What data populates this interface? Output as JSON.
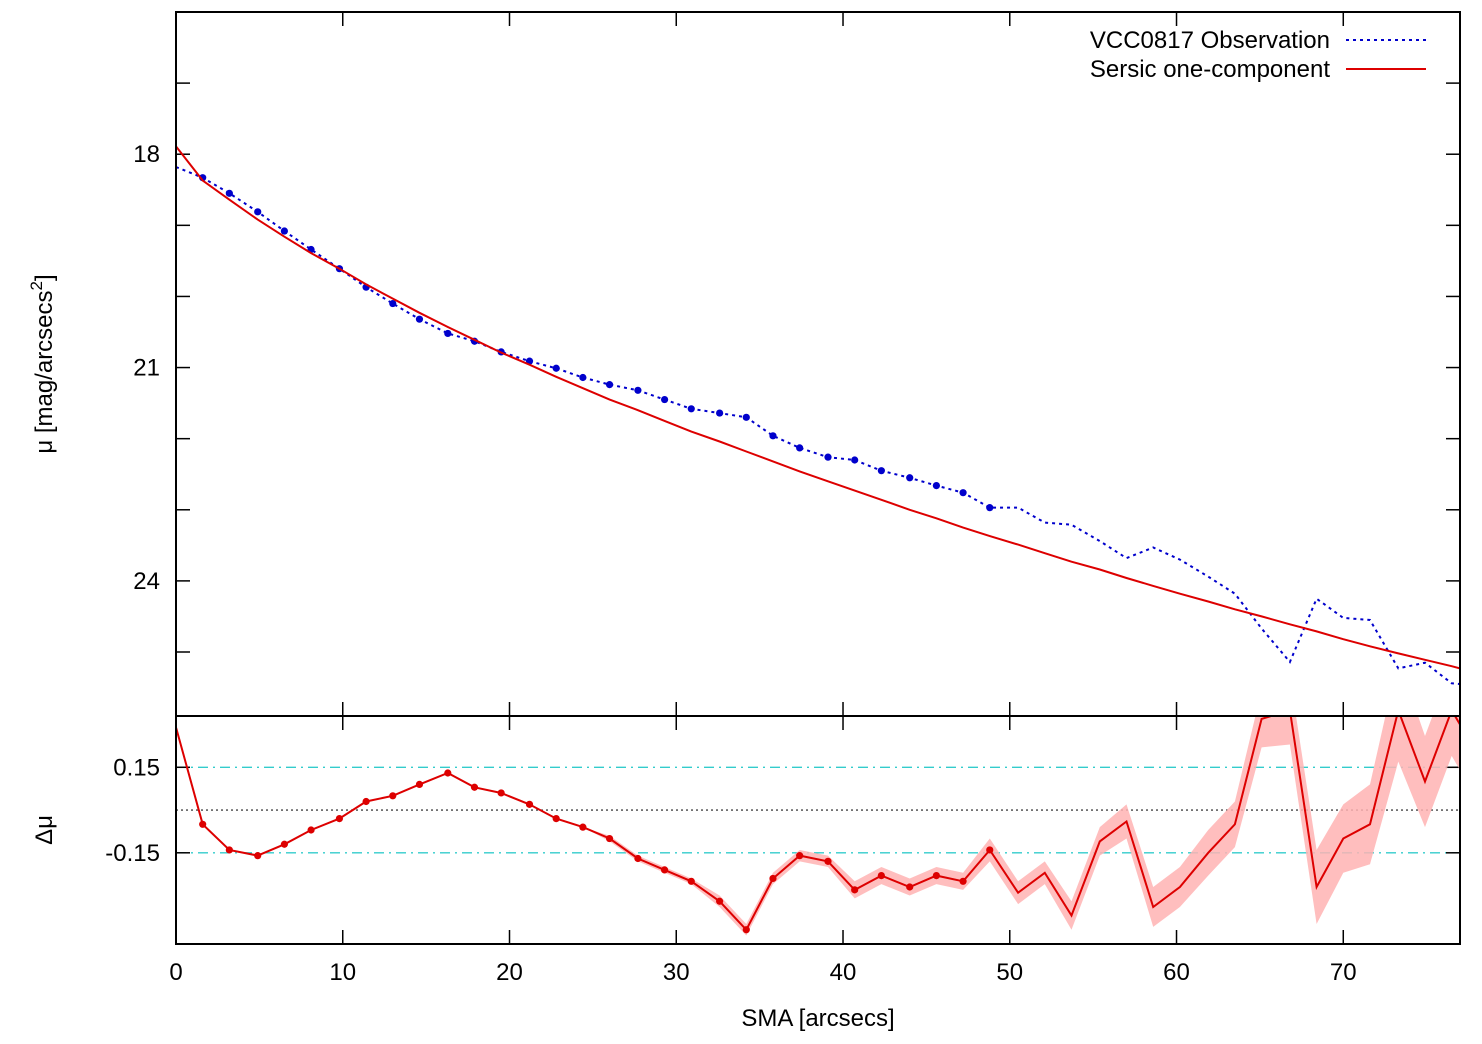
{
  "chart_data": {
    "type": "line",
    "x": [
      0.0,
      1.6,
      3.2,
      4.9,
      6.5,
      8.1,
      9.8,
      11.4,
      13.0,
      14.6,
      16.3,
      17.9,
      19.5,
      21.2,
      22.8,
      24.4,
      26.0,
      27.7,
      29.3,
      30.9,
      32.6,
      34.2,
      35.8,
      37.4,
      39.1,
      40.7,
      42.3,
      44.0,
      45.6,
      47.2,
      48.8,
      50.5,
      52.1,
      53.7,
      55.4,
      57.0,
      58.6,
      60.2,
      61.9,
      63.5,
      65.1,
      66.8,
      68.4,
      70.0,
      71.6,
      73.3,
      74.9,
      76.5,
      77.0
    ],
    "xlabel": "SMA [arcsecs]",
    "xlim": [
      0,
      77
    ],
    "xticks": [
      "0",
      "10",
      "20",
      "30",
      "40",
      "50",
      "60",
      "70"
    ],
    "legend_position": "top-right",
    "panels": [
      {
        "id": "profile",
        "ylabel": "μ [mag/arcsecs²]",
        "ylim": [
          16.0,
          25.9
        ],
        "y_inverted": true,
        "yticks": [
          "18",
          "21",
          "24"
        ],
        "series": [
          {
            "name": "VCC0817 Observation",
            "color": "#0000cc",
            "style": "dotted",
            "marker_count": 33,
            "values": [
              18.18,
              18.33,
              18.55,
              18.81,
              19.08,
              19.34,
              19.61,
              19.87,
              20.1,
              20.32,
              20.52,
              20.63,
              20.78,
              20.91,
              21.01,
              21.14,
              21.24,
              21.32,
              21.45,
              21.58,
              21.64,
              21.7,
              21.96,
              22.13,
              22.26,
              22.3,
              22.45,
              22.55,
              22.66,
              22.76,
              22.97,
              22.97,
              23.18,
              23.21,
              23.44,
              23.68,
              23.53,
              23.7,
              23.94,
              24.18,
              24.67,
              25.14,
              24.25,
              24.52,
              24.55,
              25.23,
              25.15,
              25.44,
              25.45
            ]
          },
          {
            "name": "Sersic one-component",
            "color": "#dd0000",
            "style": "solid",
            "values": [
              17.89,
              18.37,
              18.64,
              18.92,
              19.16,
              19.39,
              19.61,
              19.83,
              20.03,
              20.23,
              20.43,
              20.61,
              20.79,
              20.96,
              21.13,
              21.29,
              21.45,
              21.6,
              21.75,
              21.9,
              22.04,
              22.18,
              22.32,
              22.46,
              22.6,
              22.73,
              22.86,
              23.0,
              23.12,
              23.25,
              23.37,
              23.49,
              23.61,
              23.73,
              23.84,
              23.96,
              24.07,
              24.18,
              24.29,
              24.4,
              24.5,
              24.61,
              24.71,
              24.82,
              24.92,
              25.02,
              25.11,
              25.2,
              25.23
            ]
          }
        ]
      },
      {
        "id": "residual",
        "ylabel": "Δμ",
        "ylim": [
          -0.47,
          0.33
        ],
        "yticks": [
          "0.15",
          "-0.15"
        ],
        "reference_lines": [
          0.15,
          0.0,
          -0.15
        ],
        "series": [
          {
            "name": "",
            "color": "#dd0000",
            "style": "solid",
            "marker_count": 36,
            "values": [
              0.29,
              -0.05,
              -0.14,
              -0.16,
              -0.12,
              -0.07,
              -0.03,
              0.03,
              0.05,
              0.09,
              0.13,
              0.08,
              0.06,
              0.02,
              -0.03,
              -0.06,
              -0.1,
              -0.17,
              -0.21,
              -0.25,
              -0.32,
              -0.42,
              -0.24,
              -0.16,
              -0.18,
              -0.28,
              -0.23,
              -0.27,
              -0.23,
              -0.25,
              -0.14,
              -0.29,
              -0.22,
              -0.37,
              -0.11,
              -0.04,
              -0.34,
              -0.27,
              -0.15,
              -0.05,
              0.32,
              0.35,
              -0.27,
              -0.1,
              -0.05,
              0.35,
              0.1,
              0.35,
              0.3
            ],
            "band_halfwidth": [
              0.0,
              0.0,
              0.0,
              0.0,
              0.0,
              0.0,
              0.0,
              0.0,
              0.0,
              0.0,
              0.0,
              0.0,
              0.0,
              0.0,
              0.0,
              0.0,
              0.01,
              0.01,
              0.01,
              0.01,
              0.02,
              0.02,
              0.02,
              0.02,
              0.02,
              0.03,
              0.03,
              0.03,
              0.03,
              0.03,
              0.04,
              0.04,
              0.04,
              0.05,
              0.05,
              0.06,
              0.07,
              0.07,
              0.08,
              0.08,
              0.1,
              0.12,
              0.13,
              0.12,
              0.14,
              0.18,
              0.16,
              0.16,
              0.16
            ]
          }
        ]
      }
    ]
  }
}
